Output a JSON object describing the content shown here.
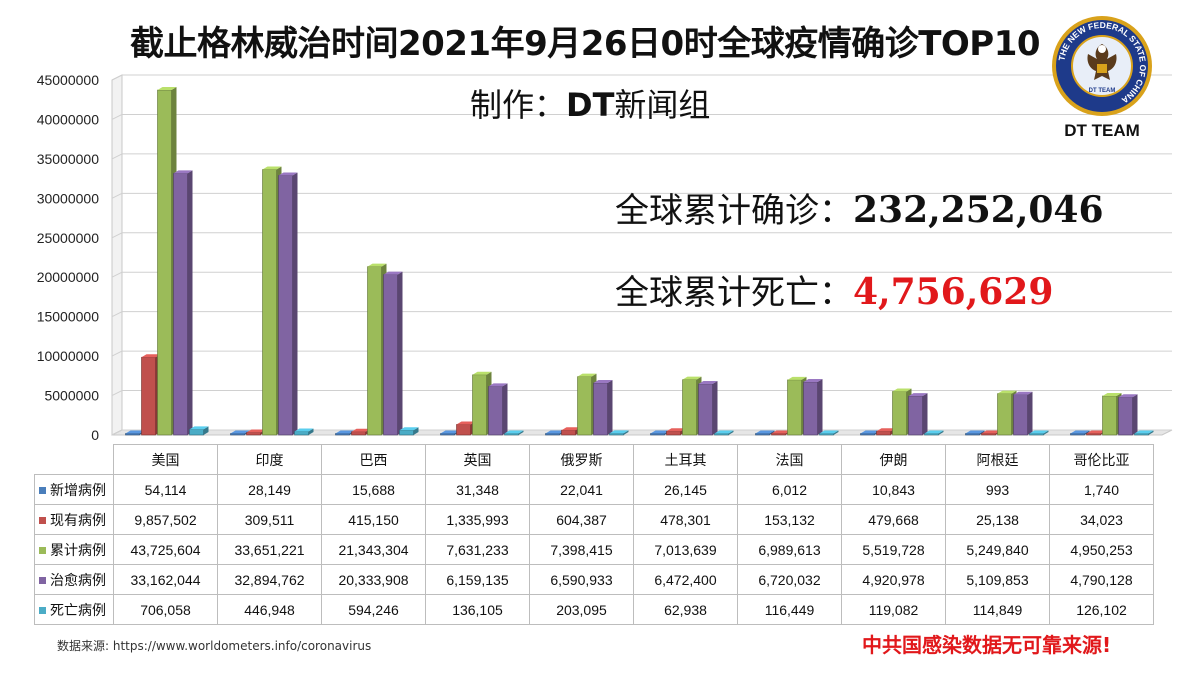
{
  "header": {
    "title": "截止格林威治时间2021年9月26日0时全球疫情确诊TOP10",
    "subtitle_prefix": "制作：",
    "subtitle_team": "DT",
    "subtitle_suffix": "新闻组"
  },
  "stats": {
    "confirmed_label": "全球累计确诊：",
    "confirmed_value": "232,252,046",
    "deaths_label": "全球累计死亡：",
    "deaths_value": "4,756,629"
  },
  "logo": {
    "ring_text": "THE NEW FEDERAL STATE OF CHINA",
    "inner_text": "DT TEAM",
    "caption": "DT TEAM"
  },
  "footer": {
    "source": "数据来源: https://www.worldometers.info/coronavirus",
    "slogan": "中共国感染数据无可靠来源!"
  },
  "colors": {
    "new_cases": "#4a7ebb",
    "active_cases": "#c0504d",
    "total_cases": "#9bbb59",
    "recovered": "#8064a2",
    "deaths": "#4bacc6",
    "slogan": "#e1181b"
  },
  "chart_data": {
    "type": "bar",
    "style": "3d-clustered-columns",
    "categories": [
      "美国",
      "印度",
      "巴西",
      "英国",
      "俄罗斯",
      "土耳其",
      "法国",
      "伊朗",
      "阿根廷",
      "哥伦比亚"
    ],
    "series": [
      {
        "name": "新增病例",
        "color": "#4a7ebb",
        "values": [
          54114,
          28149,
          15688,
          31348,
          22041,
          26145,
          6012,
          10843,
          993,
          1740
        ],
        "labels": [
          "54,114",
          "28,149",
          "15,688",
          "31,348",
          "22,041",
          "26,145",
          "6,012",
          "10,843",
          "993",
          "1,740"
        ]
      },
      {
        "name": "现有病例",
        "color": "#c0504d",
        "values": [
          9857502,
          309511,
          415150,
          1335993,
          604387,
          478301,
          153132,
          479668,
          25138,
          34023
        ],
        "labels": [
          "9,857,502",
          "309,511",
          "415,150",
          "1,335,993",
          "604,387",
          "478,301",
          "153,132",
          "479,668",
          "25,138",
          "34,023"
        ]
      },
      {
        "name": "累计病例",
        "color": "#9bbb59",
        "values": [
          43725604,
          33651221,
          21343304,
          7631233,
          7398415,
          7013639,
          6989613,
          5519728,
          5249840,
          4950253
        ],
        "labels": [
          "43,725,604",
          "33,651,221",
          "21,343,304",
          "7,631,233",
          "7,398,415",
          "7,013,639",
          "6,989,613",
          "5,519,728",
          "5,249,840",
          "4,950,253"
        ]
      },
      {
        "name": "治愈病例",
        "color": "#8064a2",
        "values": [
          33162044,
          32894762,
          20333908,
          6159135,
          6590933,
          6472400,
          6720032,
          4920978,
          5109853,
          4790128
        ],
        "labels": [
          "33,162,044",
          "32,894,762",
          "20,333,908",
          "6,159,135",
          "6,590,933",
          "6,472,400",
          "6,720,032",
          "4,920,978",
          "5,109,853",
          "4,790,128"
        ]
      },
      {
        "name": "死亡病例",
        "color": "#4bacc6",
        "values": [
          706058,
          446948,
          594246,
          136105,
          203095,
          62938,
          116449,
          119082,
          114849,
          126102
        ],
        "labels": [
          "706,058",
          "446,948",
          "594,246",
          "136,105",
          "203,095",
          "62,938",
          "116,449",
          "119,082",
          "114,849",
          "126,102"
        ]
      }
    ],
    "yticks": [
      "0",
      "5000000",
      "10000000",
      "15000000",
      "20000000",
      "25000000",
      "30000000",
      "35000000",
      "40000000",
      "45000000"
    ],
    "ylim": [
      0,
      45000000
    ],
    "grid": true,
    "legend": "data-table-below"
  }
}
